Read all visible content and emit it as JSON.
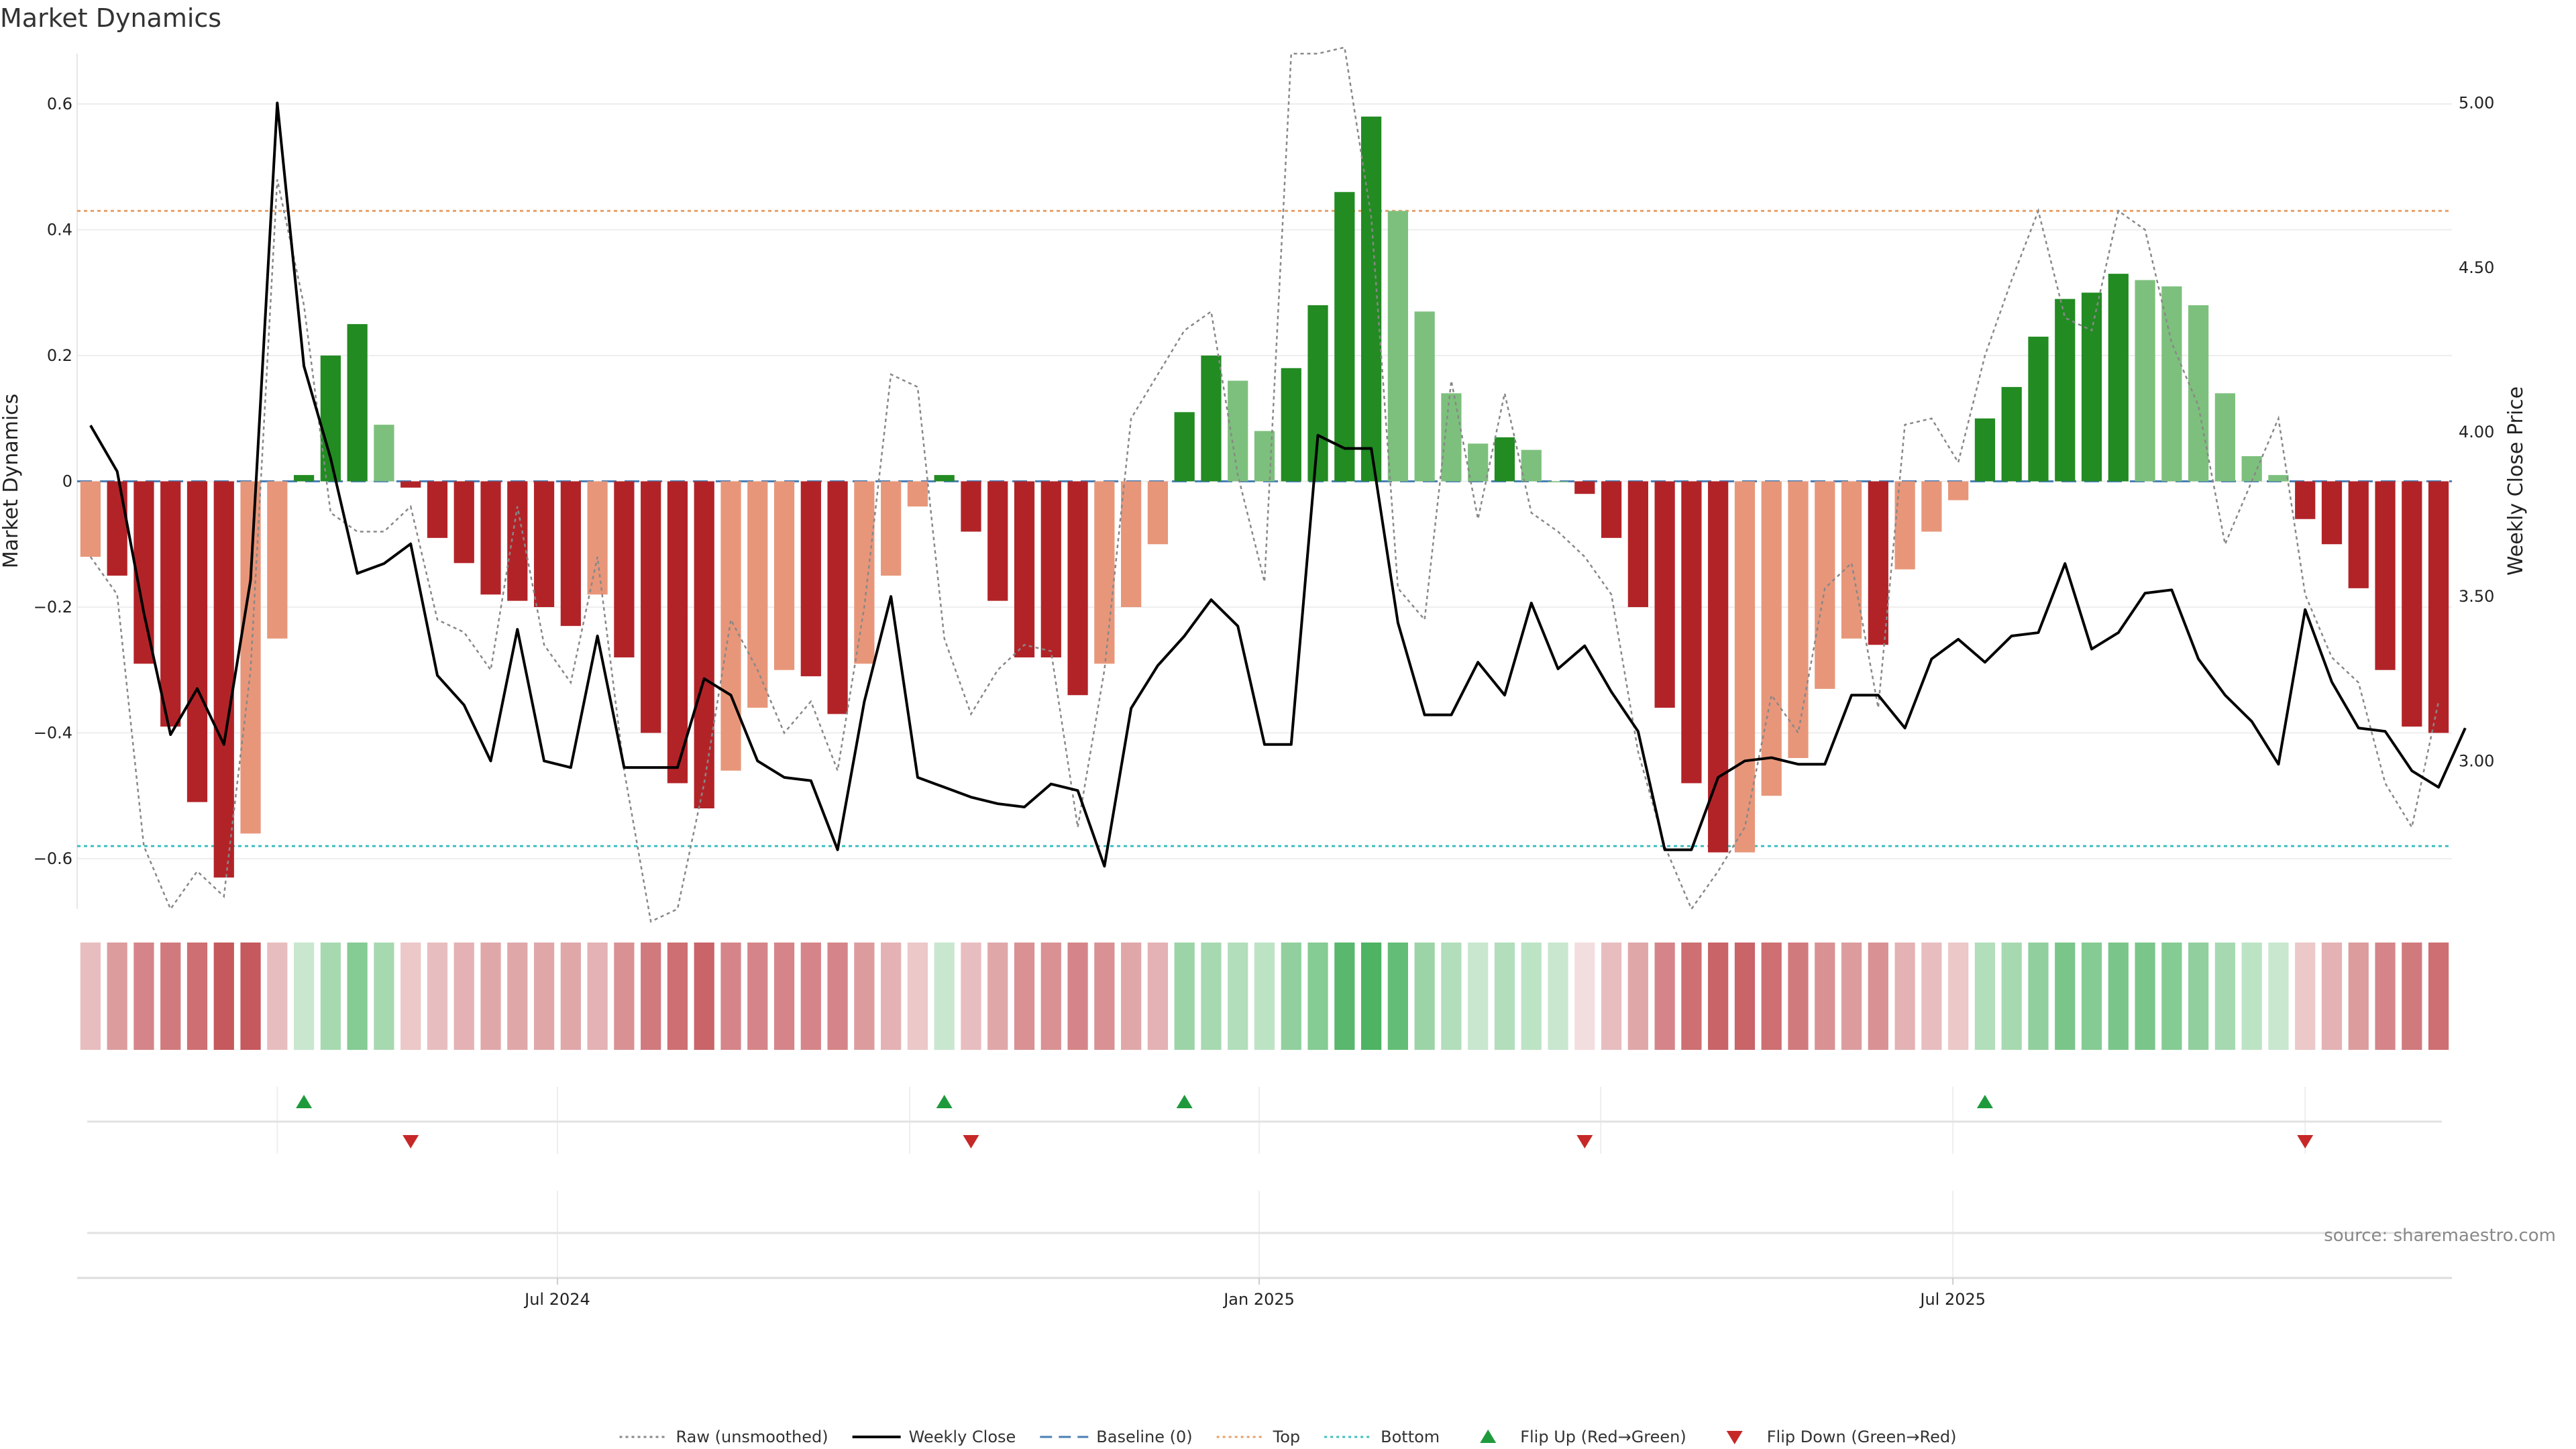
{
  "chart_data": {
    "type": "bar",
    "title": "Market Dynamics",
    "ylabel": "Market Dynamics",
    "y2label": "Weekly Close Price",
    "ylim": [
      -0.68,
      0.68
    ],
    "y2lim": [
      2.55,
      5.15
    ],
    "yticks": [
      "0.6",
      "0.4",
      "0.2",
      "0",
      "−0.2",
      "−0.4",
      "−0.6"
    ],
    "yticks_values": [
      0.6,
      0.4,
      0.2,
      0,
      -0.2,
      -0.4,
      -0.6
    ],
    "y2ticks": [
      "5.00",
      "4.50",
      "4.00",
      "3.50",
      "3.00"
    ],
    "y2ticks_values": [
      5.0,
      4.5,
      4.0,
      3.5,
      3.0
    ],
    "top_threshold": 0.43,
    "bottom_threshold": -0.58,
    "xticks": [
      {
        "label": "Jul 2024",
        "index": 17.5
      },
      {
        "label": "Jan 2025",
        "index": 43.8
      },
      {
        "label": "Jul 2025",
        "index": 69.8
      }
    ],
    "bars": [
      -0.12,
      -0.15,
      -0.29,
      -0.39,
      -0.51,
      -0.63,
      -0.56,
      -0.25,
      0.01,
      0.2,
      0.25,
      0.09,
      -0.01,
      -0.09,
      -0.13,
      -0.18,
      -0.19,
      -0.2,
      -0.23,
      -0.18,
      -0.28,
      -0.4,
      -0.48,
      -0.52,
      -0.46,
      -0.36,
      -0.3,
      -0.31,
      -0.37,
      -0.29,
      -0.15,
      -0.04,
      0.01,
      -0.08,
      -0.19,
      -0.28,
      -0.28,
      -0.34,
      -0.29,
      -0.2,
      -0.1,
      0.11,
      0.2,
      0.16,
      0.08,
      0.18,
      0.28,
      0.46,
      0.58,
      0.43,
      0.27,
      0.14,
      0.06,
      0.07,
      0.05,
      0.0,
      -0.02,
      -0.09,
      -0.2,
      -0.36,
      -0.48,
      -0.59,
      -0.59,
      -0.5,
      -0.44,
      -0.33,
      -0.25,
      -0.26,
      -0.14,
      -0.08,
      -0.03,
      0.1,
      0.15,
      0.23,
      0.29,
      0.3,
      0.33,
      0.32,
      0.31,
      0.28,
      0.14,
      0.04,
      0.01,
      -0.06,
      -0.1,
      -0.17,
      -0.3,
      -0.39,
      -0.4
    ],
    "bar_shades": [
      "light",
      "dark",
      "dark",
      "dark",
      "dark",
      "dark",
      "light",
      "light",
      "dark",
      "dark",
      "dark",
      "light",
      "dark",
      "dark",
      "dark",
      "dark",
      "dark",
      "dark",
      "dark",
      "light",
      "dark",
      "dark",
      "dark",
      "dark",
      "light",
      "light",
      "light",
      "dark",
      "dark",
      "light",
      "light",
      "light",
      "dark",
      "dark",
      "dark",
      "dark",
      "dark",
      "dark",
      "light",
      "light",
      "light",
      "dark",
      "dark",
      "light",
      "light",
      "dark",
      "dark",
      "dark",
      "dark",
      "light",
      "light",
      "light",
      "light",
      "dark",
      "light",
      "light",
      "dark",
      "dark",
      "dark",
      "dark",
      "dark",
      "dark",
      "light",
      "light",
      "light",
      "light",
      "light",
      "dark",
      "light",
      "light",
      "light",
      "dark",
      "dark",
      "dark",
      "dark",
      "dark",
      "dark",
      "light",
      "light",
      "light",
      "light",
      "light",
      "light",
      "dark",
      "dark",
      "dark",
      "dark",
      "dark",
      "dark"
    ],
    "raw": [
      -0.12,
      -0.18,
      -0.58,
      -0.68,
      -0.62,
      -0.66,
      -0.3,
      0.48,
      0.28,
      -0.05,
      -0.08,
      -0.08,
      -0.04,
      -0.22,
      -0.24,
      -0.3,
      -0.04,
      -0.26,
      -0.32,
      -0.12,
      -0.46,
      -0.7,
      -0.68,
      -0.48,
      -0.22,
      -0.3,
      -0.4,
      -0.35,
      -0.46,
      -0.2,
      0.17,
      0.15,
      -0.25,
      -0.37,
      -0.3,
      -0.26,
      -0.27,
      -0.55,
      -0.3,
      0.1,
      0.17,
      0.24,
      0.27,
      0.01,
      -0.16,
      0.68,
      0.68,
      0.69,
      0.42,
      -0.17,
      -0.22,
      0.16,
      -0.06,
      0.14,
      -0.05,
      -0.08,
      -0.12,
      -0.18,
      -0.43,
      -0.58,
      -0.68,
      -0.62,
      -0.55,
      -0.34,
      -0.4,
      -0.17,
      -0.13,
      -0.36,
      0.09,
      0.1,
      0.03,
      0.2,
      0.32,
      0.43,
      0.26,
      0.24,
      0.43,
      0.4,
      0.22,
      0.12,
      -0.1,
      0.0,
      0.1,
      -0.18,
      -0.28,
      -0.32,
      -0.48,
      -0.55,
      -0.35
    ],
    "close": [
      4.02,
      3.88,
      3.45,
      3.08,
      3.22,
      3.05,
      3.55,
      5.0,
      4.2,
      3.92,
      3.57,
      3.6,
      3.66,
      3.26,
      3.17,
      3.0,
      3.4,
      3.0,
      2.98,
      3.38,
      2.98,
      2.98,
      2.98,
      3.25,
      3.2,
      3.0,
      2.95,
      2.94,
      2.73,
      3.18,
      3.5,
      2.95,
      2.92,
      2.89,
      2.87,
      2.86,
      2.93,
      2.91,
      2.68,
      3.16,
      3.29,
      3.38,
      3.49,
      3.41,
      3.05,
      3.05,
      3.99,
      3.95,
      3.95,
      3.42,
      3.14,
      3.14,
      3.3,
      3.2,
      3.48,
      3.28,
      3.35,
      3.21,
      3.09,
      2.73,
      2.73,
      2.95,
      3.0,
      3.01,
      2.99,
      2.99,
      3.2,
      3.2,
      3.1,
      3.31,
      3.37,
      3.3,
      3.38,
      3.39,
      3.6,
      3.34,
      3.39,
      3.51,
      3.52,
      3.31,
      3.2,
      3.12,
      2.99,
      3.46,
      3.24,
      3.1,
      3.09,
      2.97,
      2.92,
      3.1
    ],
    "heat_strip": [
      -0.3,
      -0.45,
      -0.55,
      -0.6,
      -0.65,
      -0.75,
      -0.75,
      -0.3,
      0.25,
      0.4,
      0.55,
      0.4,
      -0.25,
      -0.3,
      -0.35,
      -0.4,
      -0.4,
      -0.4,
      -0.4,
      -0.35,
      -0.5,
      -0.6,
      -0.65,
      -0.7,
      -0.55,
      -0.55,
      -0.55,
      -0.55,
      -0.55,
      -0.45,
      -0.35,
      -0.25,
      0.25,
      -0.3,
      -0.4,
      -0.5,
      -0.5,
      -0.55,
      -0.5,
      -0.4,
      -0.35,
      0.45,
      0.4,
      0.35,
      0.3,
      0.5,
      0.55,
      0.75,
      0.8,
      0.7,
      0.45,
      0.35,
      0.25,
      0.35,
      0.3,
      0.25,
      -0.15,
      -0.3,
      -0.4,
      -0.55,
      -0.65,
      -0.7,
      -0.7,
      -0.65,
      -0.6,
      -0.5,
      -0.45,
      -0.5,
      -0.35,
      -0.3,
      -0.25,
      0.35,
      0.4,
      0.5,
      0.6,
      0.55,
      0.6,
      0.6,
      0.55,
      0.5,
      0.4,
      0.3,
      0.25,
      -0.25,
      -0.35,
      -0.45,
      -0.55,
      -0.6,
      -0.65
    ],
    "flip_up_indices": [
      8,
      32,
      41,
      71
    ],
    "flip_down_indices": [
      12,
      33,
      56,
      83
    ],
    "legend": [
      {
        "label": "Raw (unsmoothed)",
        "kind": "line",
        "color": "#888888",
        "dash": "dotted"
      },
      {
        "label": "Weekly Close",
        "kind": "line",
        "color": "#000000",
        "dash": "solid"
      },
      {
        "label": "Baseline (0)",
        "kind": "line",
        "color": "#4a7fb5",
        "dash": "dashed"
      },
      {
        "label": "Top",
        "kind": "line",
        "color": "#e8a06a",
        "dash": "dotted"
      },
      {
        "label": "Bottom",
        "kind": "line",
        "color": "#3fbfbf",
        "dash": "dotted"
      },
      {
        "label": "Flip Up (Red→Green)",
        "kind": "up",
        "color": "#1e9a3c"
      },
      {
        "label": "Flip Down (Green→Red)",
        "kind": "down",
        "color": "#c62828"
      }
    ],
    "colors": {
      "dark_red": "#b22328",
      "light_red": "#e8967a",
      "dark_green": "#228b22",
      "light_green": "#7dc07d",
      "baseline": "#4a7fb5",
      "top": "#e8a06a",
      "bottom": "#3fbfbf",
      "raw": "#888888",
      "close": "#000000"
    },
    "source": "source: sharemaestro.com"
  }
}
